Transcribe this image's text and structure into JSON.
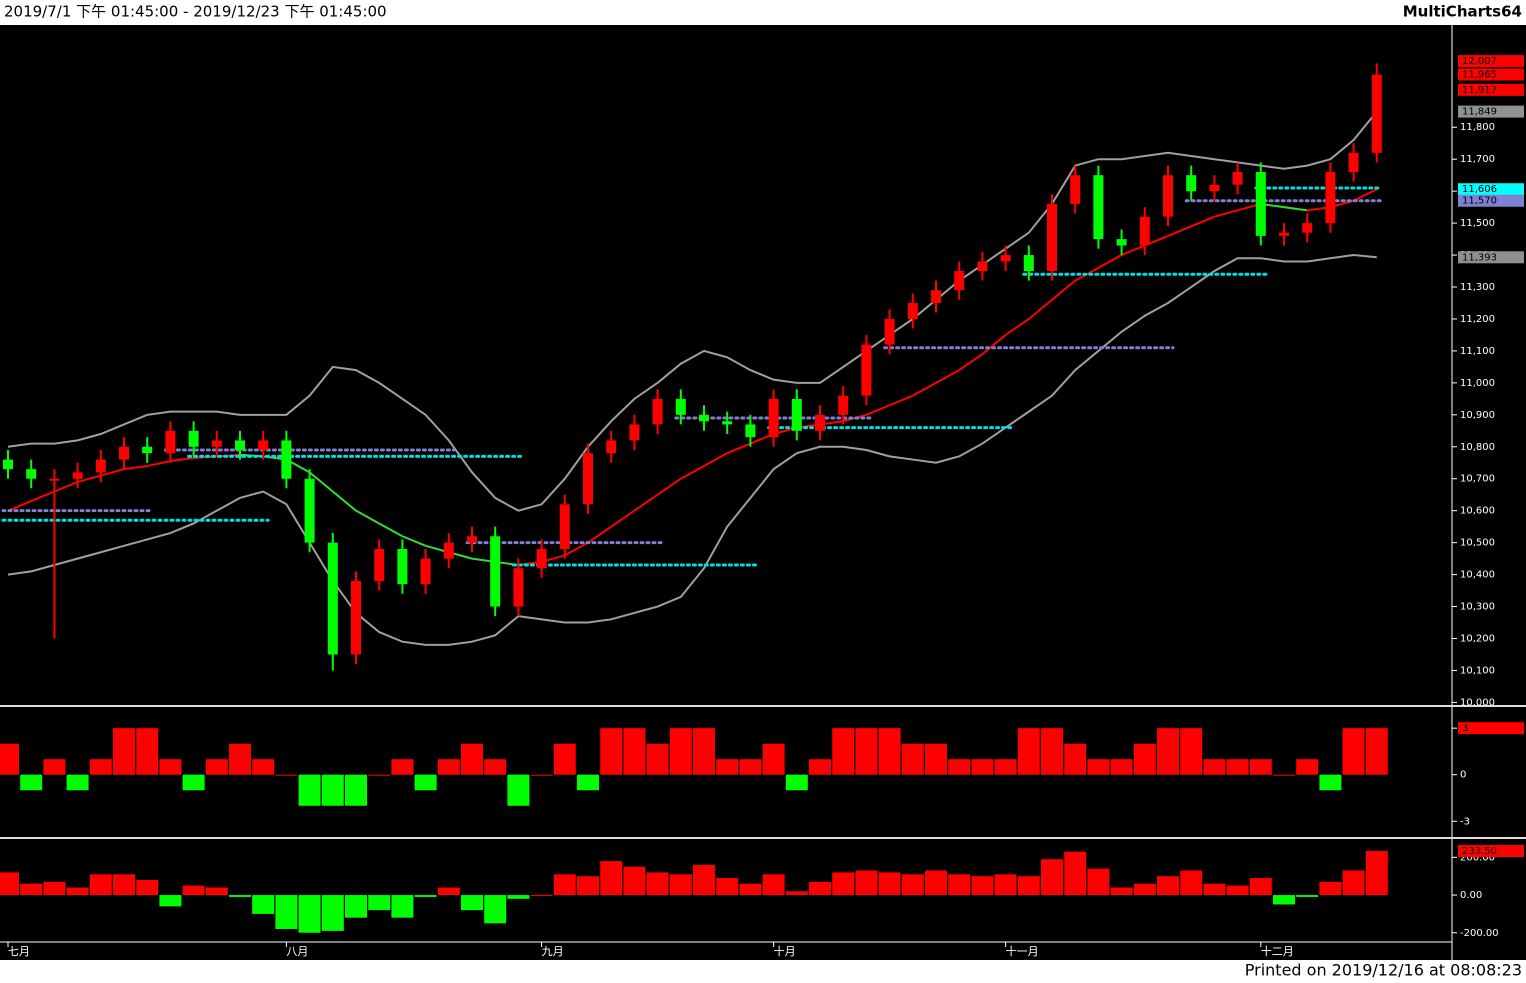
{
  "header": {
    "title": "2019/7/1 下午 01:45:00 - 2019/12/23 下午 01:45:00",
    "app": "MultiCharts64"
  },
  "footer": "Printed on 2019/12/16 at 08:08:23",
  "chart_data": [
    {
      "type": "candlestick",
      "up_color": "#ff0000",
      "down_color": "#00ff00",
      "categories": [
        "七月",
        null,
        null,
        null,
        null,
        null,
        null,
        null,
        null,
        null,
        null,
        null,
        "八月",
        null,
        null,
        null,
        null,
        null,
        null,
        null,
        null,
        null,
        null,
        "九月",
        null,
        null,
        null,
        null,
        null,
        null,
        null,
        null,
        null,
        "十月",
        null,
        null,
        null,
        null,
        null,
        null,
        null,
        null,
        null,
        "十一月",
        null,
        null,
        null,
        null,
        null,
        null,
        null,
        null,
        null,
        null,
        "十二月",
        null,
        null,
        null,
        null,
        null
      ],
      "open": [
        10760,
        10730,
        10700,
        10700,
        10720,
        10760,
        10800,
        10780,
        10850,
        10800,
        10820,
        10790,
        10820,
        10700,
        10500,
        10150,
        10380,
        10480,
        10370,
        10450,
        10500,
        10520,
        10300,
        10420,
        10480,
        10620,
        10780,
        10820,
        10870,
        10950,
        10900,
        10880,
        10870,
        10830,
        10950,
        10850,
        10900,
        10960,
        11120,
        11200,
        11250,
        11290,
        11350,
        11380,
        11400,
        11350,
        11560,
        11650,
        11450,
        11430,
        11520,
        11650,
        11600,
        11620,
        11660,
        11460,
        11470,
        11500,
        11660,
        11720
      ],
      "high": [
        10790,
        10760,
        10730,
        10750,
        10790,
        10830,
        10830,
        10880,
        10880,
        10850,
        10850,
        10850,
        10850,
        10730,
        10530,
        10410,
        10510,
        10510,
        10480,
        10530,
        10550,
        10550,
        10450,
        10510,
        10650,
        10810,
        10850,
        10900,
        10980,
        10980,
        10930,
        10910,
        10900,
        10980,
        10980,
        10930,
        10990,
        11150,
        11230,
        11280,
        11320,
        11380,
        11410,
        11430,
        11430,
        11590,
        11680,
        11680,
        11480,
        11550,
        11680,
        11680,
        11650,
        11690,
        11690,
        11500,
        11530,
        11690,
        11750,
        12000
      ],
      "low": [
        10700,
        10670,
        10200,
        10670,
        10690,
        10730,
        10750,
        10750,
        10770,
        10770,
        10760,
        10760,
        10670,
        10470,
        10100,
        10120,
        10350,
        10340,
        10340,
        10420,
        10470,
        10270,
        10270,
        10390,
        10450,
        10590,
        10750,
        10790,
        10840,
        10870,
        10850,
        10840,
        10800,
        10800,
        10820,
        10820,
        10870,
        10930,
        11090,
        11170,
        11220,
        11260,
        11320,
        11350,
        11320,
        11320,
        11530,
        11420,
        11400,
        11400,
        11490,
        11570,
        11570,
        11590,
        11430,
        11430,
        11440,
        11470,
        11630,
        11690
      ],
      "close": [
        10730,
        10700,
        10700,
        10720,
        10760,
        10800,
        10780,
        10850,
        10800,
        10820,
        10790,
        10820,
        10700,
        10500,
        10150,
        10380,
        10480,
        10370,
        10450,
        10500,
        10520,
        10300,
        10420,
        10480,
        10620,
        10780,
        10820,
        10870,
        10950,
        10900,
        10880,
        10870,
        10830,
        10950,
        10850,
        10900,
        10960,
        11120,
        11200,
        11250,
        11290,
        11350,
        11380,
        11400,
        11350,
        11560,
        11650,
        11450,
        11430,
        11520,
        11650,
        11600,
        11620,
        11660,
        11460,
        11470,
        11500,
        11660,
        11720,
        11965
      ],
      "bands": [
        {
          "color": "#a0a0a0",
          "values": [
            10800,
            10810,
            10810,
            10820,
            10840,
            10870,
            10900,
            10910,
            10910,
            10910,
            10900,
            10900,
            10900,
            10960,
            11050,
            11040,
            11000,
            10950,
            10900,
            10820,
            10720,
            10640,
            10600,
            10620,
            10700,
            10800,
            10880,
            10950,
            11000,
            11060,
            11100,
            11080,
            11040,
            11010,
            11000,
            11000,
            11050,
            11100,
            11150,
            11200,
            11260,
            11320,
            11370,
            11420,
            11470,
            11560,
            11680,
            11700,
            11700,
            11710,
            11720,
            11710,
            11700,
            11690,
            11680,
            11670,
            11680,
            11700,
            11760,
            11849
          ]
        },
        {
          "color": "#ff0000",
          "down_color": "#33dd33",
          "values": [
            10600,
            10630,
            10660,
            10690,
            10710,
            10730,
            10740,
            10755,
            10765,
            10770,
            10775,
            10770,
            10760,
            10720,
            10660,
            10600,
            10560,
            10520,
            10490,
            10470,
            10450,
            10440,
            10430,
            10440,
            10460,
            10500,
            10550,
            10600,
            10650,
            10700,
            10740,
            10780,
            10810,
            10840,
            10860,
            10870,
            10880,
            10900,
            10930,
            10960,
            11000,
            11040,
            11090,
            11150,
            11200,
            11260,
            11320,
            11360,
            11400,
            11430,
            11460,
            11490,
            11520,
            11540,
            11560,
            11550,
            11540,
            11550,
            11570,
            11606
          ]
        },
        {
          "color": "#a0a0a0",
          "values": [
            10400,
            10410,
            10430,
            10450,
            10470,
            10490,
            10510,
            10530,
            10560,
            10600,
            10640,
            10660,
            10620,
            10500,
            10380,
            10280,
            10220,
            10190,
            10180,
            10180,
            10190,
            10210,
            10270,
            10260,
            10250,
            10250,
            10260,
            10280,
            10300,
            10330,
            10420,
            10550,
            10640,
            10730,
            10780,
            10800,
            10800,
            10790,
            10770,
            10760,
            10750,
            10770,
            10810,
            10860,
            10910,
            10960,
            11040,
            11100,
            11160,
            11210,
            11250,
            11300,
            11350,
            11390,
            11390,
            11380,
            11380,
            11390,
            11400,
            11393
          ]
        }
      ],
      "levels": [
        {
          "color": "#8080d0",
          "value": 10600,
          "start": 0,
          "end": 6
        },
        {
          "color": "#00e0e0",
          "value": 10570,
          "start": 0,
          "end": 11
        },
        {
          "color": "#8080d0",
          "value": 10790,
          "start": 7,
          "end": 19
        },
        {
          "color": "#00e0e0",
          "value": 10770,
          "start": 8,
          "end": 22
        },
        {
          "color": "#8080d0",
          "value": 10500,
          "start": 20,
          "end": 28
        },
        {
          "color": "#00e0e0",
          "value": 10430,
          "start": 22,
          "end": 32
        },
        {
          "color": "#8080d0",
          "value": 10890,
          "start": 29,
          "end": 37
        },
        {
          "color": "#00e0e0",
          "value": 10860,
          "start": 33,
          "end": 43
        },
        {
          "color": "#8080d0",
          "value": 11110,
          "start": 38,
          "end": 50
        },
        {
          "color": "#00e0e0",
          "value": 11340,
          "start": 44,
          "end": 54
        },
        {
          "color": "#8080d0",
          "value": 11570,
          "start": 51,
          "end": 59
        },
        {
          "color": "#00e0e0",
          "value": 11610,
          "start": 54,
          "end": 59
        }
      ],
      "markers": [
        {
          "value": 12007,
          "label": "12,007",
          "color": "#ff0000"
        },
        {
          "value": 11965,
          "label": "11,965",
          "color": "#ff0000"
        },
        {
          "value": 11917,
          "label": "11,917",
          "color": "#ff0000"
        },
        {
          "value": 11849,
          "label": "11,849",
          "color": "#909090"
        },
        {
          "value": 11606,
          "label": "11,606",
          "color": "#00ffff"
        },
        {
          "value": 11570,
          "label": "11,570",
          "color": "#8080d0"
        },
        {
          "value": 11393,
          "label": "11,393",
          "color": "#909090"
        }
      ],
      "ylim": [
        9995,
        12120
      ],
      "yticks": [
        {
          "value": 10000,
          "label": "10,000"
        },
        {
          "value": 10100,
          "label": "10,100"
        },
        {
          "value": 10200,
          "label": "10,200"
        },
        {
          "value": 10300,
          "label": "10,300"
        },
        {
          "value": 10400,
          "label": "10,400"
        },
        {
          "value": 10500,
          "label": "10,500"
        },
        {
          "value": 10600,
          "label": "10,600"
        },
        {
          "value": 10700,
          "label": "10,700"
        },
        {
          "value": 10800,
          "label": "10,800"
        },
        {
          "value": 10900,
          "label": "10,900"
        },
        {
          "value": 11000,
          "label": "11,000"
        },
        {
          "value": 11100,
          "label": "11,100"
        },
        {
          "value": 11200,
          "label": "11,200"
        },
        {
          "value": 11300,
          "label": "11,300"
        },
        {
          "value": 11400,
          "label": "11,400"
        },
        {
          "value": 11500,
          "label": "11,500"
        },
        {
          "value": 11600,
          "label": "11,600"
        },
        {
          "value": 11700,
          "label": "11,700"
        },
        {
          "value": 11800,
          "label": "11,800"
        }
      ]
    },
    {
      "type": "bar",
      "up_color": "#ff0000",
      "down_color": "#00ff00",
      "values": [
        2,
        -1,
        1,
        -1,
        1,
        3,
        3,
        1,
        -1,
        1,
        2,
        1,
        0,
        -2,
        -2,
        -2,
        0,
        1,
        -1,
        1,
        2,
        1,
        -2,
        0,
        2,
        -1,
        3,
        3,
        2,
        3,
        3,
        1,
        1,
        2,
        -1,
        1,
        3,
        3,
        3,
        2,
        2,
        1,
        1,
        1,
        3,
        3,
        2,
        1,
        1,
        2,
        3,
        3,
        1,
        1,
        1,
        0,
        1,
        -1,
        3,
        3
      ],
      "markers": [
        {
          "value": 3,
          "label": "3",
          "color": "#ff0000"
        }
      ],
      "ylim": [
        -3.95,
        4.3
      ],
      "yticks": [
        3,
        0,
        -3
      ]
    },
    {
      "type": "bar",
      "up_color": "#ff0000",
      "down_color": "#00ff00",
      "values": [
        120,
        60,
        70,
        40,
        110,
        110,
        80,
        -60,
        50,
        40,
        -10,
        -100,
        -180,
        -200,
        -190,
        -120,
        -80,
        -120,
        -10,
        40,
        -80,
        -150,
        -20,
        0,
        110,
        100,
        180,
        150,
        120,
        110,
        160,
        90,
        60,
        110,
        20,
        70,
        120,
        130,
        120,
        110,
        130,
        110,
        100,
        110,
        100,
        190,
        230,
        140,
        40,
        60,
        100,
        130,
        60,
        50,
        90,
        -50,
        -10,
        70,
        130,
        233.5
      ],
      "markers": [
        {
          "value": 233.5,
          "label": "233.50",
          "color": "#ff0000"
        }
      ],
      "ylim": [
        -249,
        292
      ],
      "yticks": [
        {
          "value": 200,
          "label": "200.00"
        },
        {
          "value": 0,
          "label": "0.00"
        },
        {
          "value": -200,
          "label": "-200.00"
        }
      ]
    }
  ]
}
